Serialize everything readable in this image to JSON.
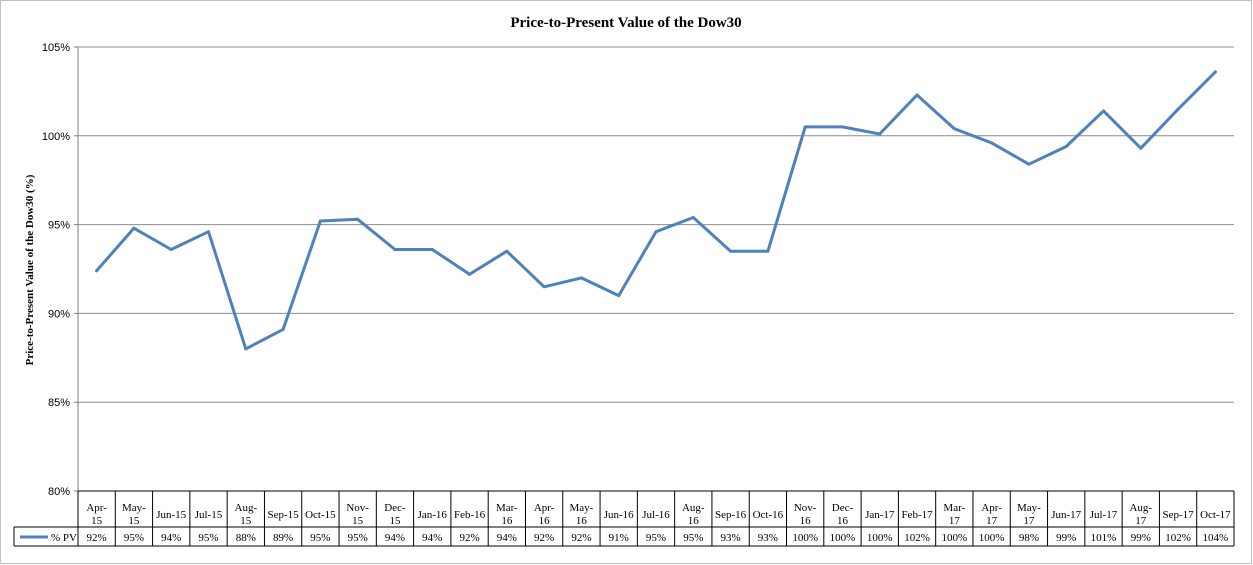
{
  "chart_data": {
    "type": "line",
    "title": "Price-to-Present Value of the Dow30",
    "xlabel": "",
    "ylabel": "Price-to-Present Value of the Dow30 (%)",
    "ylim": [
      80,
      105
    ],
    "yticks": [
      80,
      85,
      90,
      95,
      100,
      105
    ],
    "ytick_labels": [
      "80%",
      "85%",
      "90%",
      "95%",
      "100%",
      "105%"
    ],
    "grid": true,
    "categories": [
      [
        "Apr-",
        "15"
      ],
      [
        "May-",
        "15"
      ],
      [
        "Jun-15"
      ],
      [
        "Jul-15"
      ],
      [
        "Aug-",
        "15"
      ],
      [
        "Sep-15"
      ],
      [
        "Oct-15"
      ],
      [
        "Nov-",
        "15"
      ],
      [
        "Dec-",
        "15"
      ],
      [
        "Jan-16"
      ],
      [
        "Feb-16"
      ],
      [
        "Mar-",
        "16"
      ],
      [
        "Apr-",
        "16"
      ],
      [
        "May-",
        "16"
      ],
      [
        "Jun-16"
      ],
      [
        "Jul-16"
      ],
      [
        "Aug-",
        "16"
      ],
      [
        "Sep-16"
      ],
      [
        "Oct-16"
      ],
      [
        "Nov-",
        "16"
      ],
      [
        "Dec-",
        "16"
      ],
      [
        "Jan-17"
      ],
      [
        "Feb-17"
      ],
      [
        "Mar-",
        "17"
      ],
      [
        "Apr-",
        "17"
      ],
      [
        "May-",
        "17"
      ],
      [
        "Jun-17"
      ],
      [
        "Jul-17"
      ],
      [
        "Aug-",
        "17"
      ],
      [
        "Sep-17"
      ],
      [
        "Oct-17"
      ]
    ],
    "series": [
      {
        "name": "% PV",
        "color": "#4f81bd",
        "values": [
          92.4,
          94.8,
          93.6,
          94.6,
          88.0,
          89.1,
          95.2,
          95.3,
          93.6,
          93.6,
          92.2,
          93.5,
          91.5,
          92.0,
          91.0,
          94.6,
          95.4,
          93.5,
          93.5,
          100.5,
          100.5,
          100.1,
          102.3,
          100.4,
          99.6,
          98.4,
          99.4,
          101.4,
          99.3,
          101.5,
          103.6
        ],
        "labels": [
          "92%",
          "95%",
          "94%",
          "95%",
          "88%",
          "89%",
          "95%",
          "95%",
          "94%",
          "94%",
          "92%",
          "94%",
          "92%",
          "92%",
          "91%",
          "95%",
          "95%",
          "93%",
          "93%",
          "100%",
          "100%",
          "100%",
          "102%",
          "100%",
          "100%",
          "98%",
          "99%",
          "101%",
          "99%",
          "102%",
          "104%"
        ]
      }
    ]
  }
}
